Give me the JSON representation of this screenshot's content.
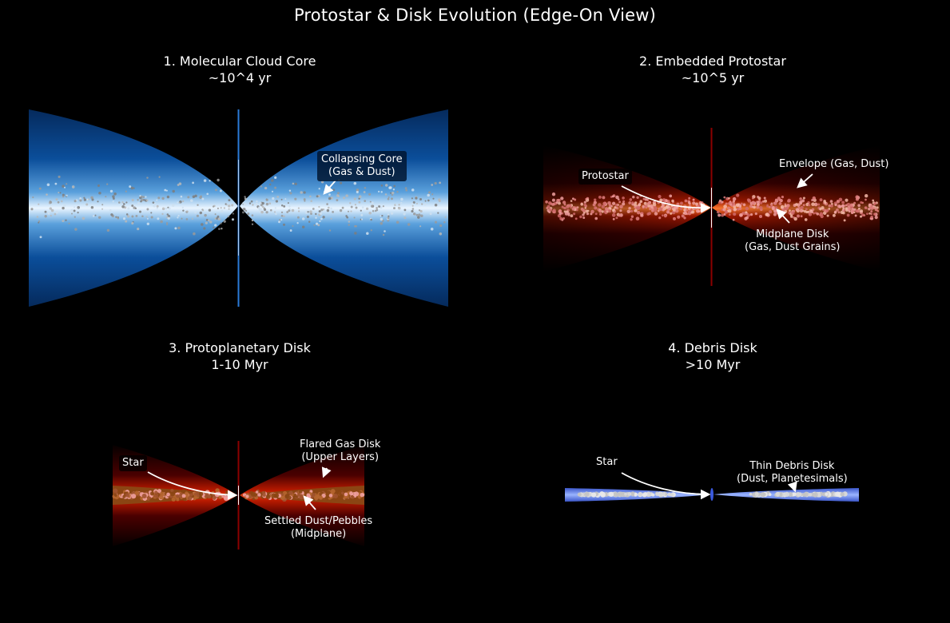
{
  "title": "Protostar & Disk Evolution (Edge-On View)",
  "panels": [
    {
      "title": "1. Molecular Cloud Core",
      "age": "~10^4 yr",
      "labels": {
        "core": [
          "Collapsing Core",
          "(Gas & Dust)"
        ]
      }
    },
    {
      "title": "2. Embedded Protostar",
      "age": "~10^5 yr",
      "labels": {
        "protostar": "Protostar",
        "envelope": "Envelope (Gas, Dust)",
        "midplane": [
          "Midplane Disk",
          "(Gas, Dust Grains)"
        ]
      }
    },
    {
      "title": "3. Protoplanetary Disk",
      "age": "1-10 Myr",
      "labels": {
        "star": "Star",
        "flared": [
          "Flared Gas Disk",
          "(Upper Layers)"
        ],
        "settled": [
          "Settled Dust/Pebbles",
          "(Midplane)"
        ]
      }
    },
    {
      "title": "4. Debris Disk",
      "age": ">10 Myr",
      "labels": {
        "star": "Star",
        "thin": [
          "Thin Debris Disk",
          "(Dust, Planetesimals)"
        ]
      }
    }
  ],
  "colors": {
    "cloud_core": "#e8f4ff",
    "cloud_edge": "#063a7a",
    "envelope_core": "#ff7a30",
    "envelope_edge": "#3a0000",
    "dust_settled": "#a0522d",
    "debris": "#5a78e0",
    "particles_grey": "#9a9a9a",
    "particles_pink": "#f0a0a0"
  },
  "icons": {
    "arrow": "curved-arrow-icon",
    "star": "star-spike-icon"
  }
}
